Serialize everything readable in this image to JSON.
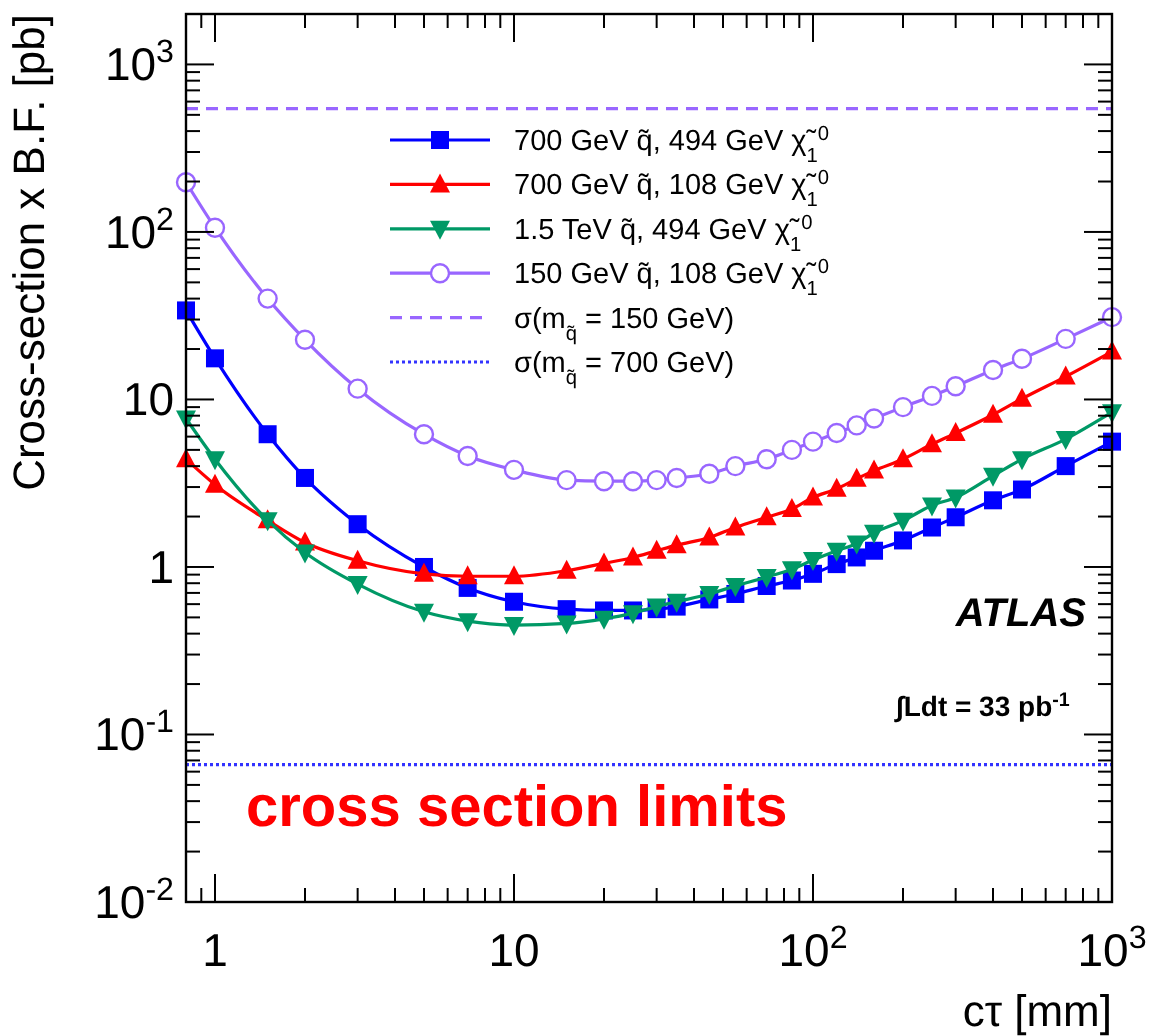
{
  "chart_data": {
    "type": "line",
    "xlabel": "cτ [mm]",
    "ylabel": "Cross-section x B.F. [pb]",
    "log": "xy",
    "xlim": [
      0.8,
      1000
    ],
    "ylim": [
      0.01,
      2000
    ],
    "xticks": [
      1,
      10,
      {
        "value": 100,
        "label": "10$^{2}$"
      },
      {
        "value": 1000,
        "label": "10$^{3}$"
      }
    ],
    "yticks": [
      {
        "value": 0.01,
        "label": "10$^{-2}$"
      },
      {
        "value": 0.1,
        "label": "10$^{-1}$"
      },
      1,
      10,
      {
        "value": 100,
        "label": "10$^{2}$"
      },
      {
        "value": 1000,
        "label": "10$^{3}$"
      }
    ],
    "x": [
      0.8,
      1,
      1.5,
      2,
      3,
      5,
      7,
      10,
      15,
      20,
      25,
      30,
      35,
      45,
      55,
      70,
      85,
      100,
      120,
      140,
      160,
      200,
      250,
      300,
      400,
      500,
      700,
      1000
    ],
    "series": [
      {
        "name": "700 GeV q̃, 494 GeV χ̃$_{1}$$^{0}$",
        "color": "#0000ff",
        "marker": "square",
        "values": [
          34,
          17.6,
          6.2,
          3.4,
          1.8,
          1.0,
          0.75,
          0.62,
          0.56,
          0.55,
          0.55,
          0.56,
          0.58,
          0.64,
          0.69,
          0.77,
          0.83,
          0.91,
          1.04,
          1.14,
          1.25,
          1.44,
          1.72,
          1.98,
          2.5,
          2.9,
          4.0,
          5.6
        ]
      },
      {
        "name": "700 GeV q̃, 108 GeV χ̃$_{1}$$^{0}$",
        "color": "#ff0000",
        "marker": "triangle",
        "values": [
          4.4,
          3.1,
          1.9,
          1.4,
          1.09,
          0.91,
          0.88,
          0.88,
          0.95,
          1.05,
          1.14,
          1.25,
          1.35,
          1.5,
          1.72,
          1.98,
          2.22,
          2.6,
          2.93,
          3.36,
          3.76,
          4.4,
          5.4,
          6.3,
          8.1,
          10.1,
          13.7,
          19.3
        ]
      },
      {
        "name": "1.5 TeV q̃, 494 GeV χ̃$_{1}$$^{0}$",
        "color": "#009966",
        "marker": "triangle-down",
        "values": [
          7.7,
          4.4,
          1.9,
          1.22,
          0.79,
          0.54,
          0.475,
          0.45,
          0.46,
          0.49,
          0.53,
          0.58,
          0.62,
          0.69,
          0.77,
          0.87,
          0.97,
          1.1,
          1.25,
          1.38,
          1.6,
          1.89,
          2.33,
          2.6,
          3.5,
          4.4,
          5.8,
          8.4
        ]
      },
      {
        "name": "150 GeV q̃, 108 GeV χ̃$_{1}$$^{0}$",
        "color": "#9966ff",
        "marker": "circle",
        "values": [
          198,
          106,
          40,
          22.7,
          11.6,
          6.2,
          4.6,
          3.8,
          3.3,
          3.25,
          3.25,
          3.3,
          3.4,
          3.6,
          4.0,
          4.4,
          5.0,
          5.6,
          6.3,
          7.0,
          7.7,
          9.0,
          10.5,
          12,
          15,
          17.5,
          23,
          31
        ]
      },
      {
        "name": "σ(m$_{q̃}$ = 150 GeV)",
        "color": "#9966ff",
        "marker": "none",
        "line_style": "dashed",
        "values": [
          545,
          545,
          545,
          545,
          545,
          545,
          545,
          545,
          545,
          545,
          545,
          545,
          545,
          545,
          545,
          545,
          545,
          545,
          545,
          545,
          545,
          545,
          545,
          545,
          545,
          545,
          545,
          545
        ]
      },
      {
        "name": "σ(m$_{q̃}$ = 700 GeV)",
        "color": "#3333ff",
        "marker": "none",
        "line_style": "dotted",
        "values": [
          0.066,
          0.066,
          0.066,
          0.066,
          0.066,
          0.066,
          0.066,
          0.066,
          0.066,
          0.066,
          0.066,
          0.066,
          0.066,
          0.066,
          0.066,
          0.066,
          0.066,
          0.066,
          0.066,
          0.066,
          0.066,
          0.066,
          0.066,
          0.066,
          0.066,
          0.066,
          0.066,
          0.066
        ]
      }
    ],
    "annotations": [
      "ATLAS",
      "∫Ldt = 33 pb$^{-1}$",
      "cross section limits"
    ],
    "legend": "top",
    "grid": false
  }
}
